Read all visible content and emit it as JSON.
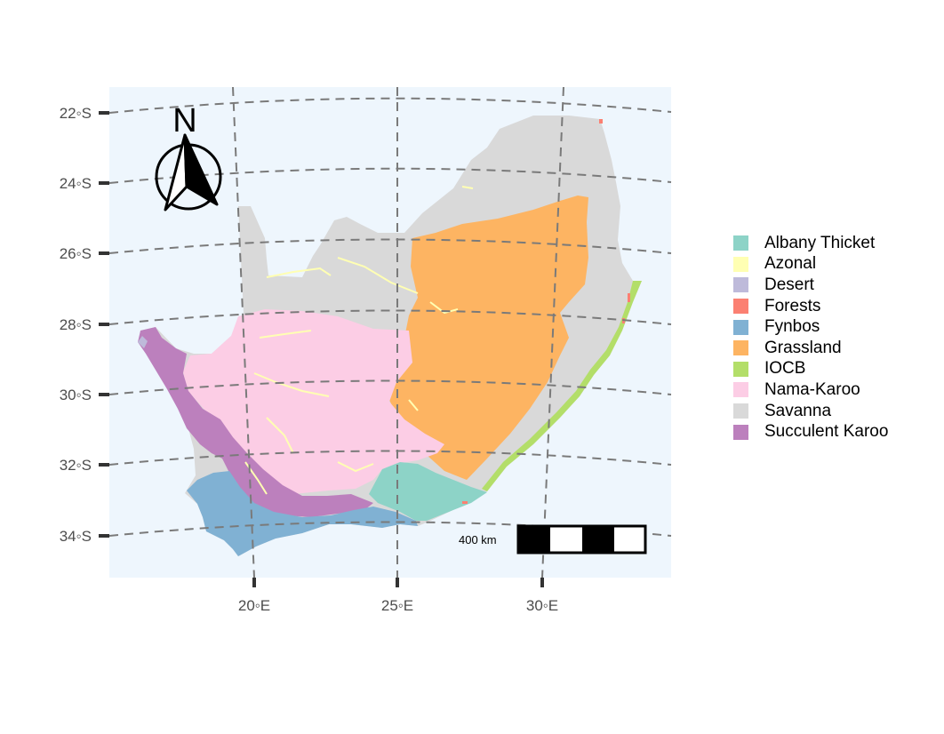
{
  "map": {
    "lat_labels": [
      "22◦S",
      "24◦S",
      "26◦S",
      "28◦S",
      "30◦S",
      "32◦S",
      "34◦S"
    ],
    "lon_labels": [
      "20◦E",
      "25◦E",
      "30◦E"
    ],
    "north_arrow_label": "N",
    "scale_bar_label": "400 km",
    "ocean_color": "#eef6fd",
    "graticule_color": "#7a7a7a"
  },
  "legend": {
    "items": [
      {
        "label": "Albany Thicket",
        "color": "#8dd3c7"
      },
      {
        "label": "Azonal",
        "color": "#ffffb3"
      },
      {
        "label": "Desert",
        "color": "#bebada"
      },
      {
        "label": "Forests",
        "color": "#fb8072"
      },
      {
        "label": "Fynbos",
        "color": "#80b1d3"
      },
      {
        "label": "Grassland",
        "color": "#fdb462"
      },
      {
        "label": "IOCB",
        "color": "#b3de69"
      },
      {
        "label": "Nama-Karoo",
        "color": "#fccde5"
      },
      {
        "label": "Savanna",
        "color": "#d9d9d9"
      },
      {
        "label": "Succulent Karoo",
        "color": "#bc80bd"
      }
    ]
  }
}
